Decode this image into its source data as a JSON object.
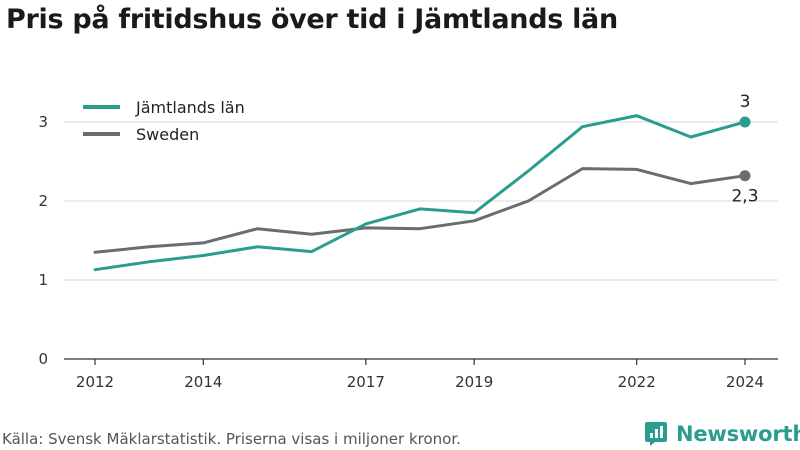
{
  "title": "Pris på fritidshus över tid i Jämtlands län",
  "source": "Källa: Svensk Mäklarstatistik. Priserna visas i miljoner kronor.",
  "brand": {
    "name": "Newsworthy"
  },
  "colors": {
    "primary": "#2a9d8f",
    "secondary": "#6b6b73",
    "grid": "#d9d9d9",
    "axis": "#333333"
  },
  "chart_data": {
    "type": "line",
    "x": [
      2012,
      2013,
      2014,
      2015,
      2016,
      2017,
      2018,
      2019,
      2020,
      2021,
      2022,
      2023,
      2024
    ],
    "x_ticks": [
      2012,
      2014,
      2017,
      2019,
      2022,
      2024
    ],
    "y_ticks": [
      0,
      1,
      2,
      3
    ],
    "ylim": [
      0,
      3.3
    ],
    "xlim": [
      2011.5,
      2024.6
    ],
    "series": [
      {
        "name": "Jämtlands län",
        "color": "#2a9d8f",
        "values": [
          1.13,
          1.23,
          1.31,
          1.42,
          1.36,
          1.71,
          1.9,
          1.85,
          2.38,
          2.94,
          3.08,
          2.81,
          3.0
        ],
        "end_label": "3"
      },
      {
        "name": "Sweden",
        "color": "#6b6b73",
        "values": [
          1.35,
          1.42,
          1.47,
          1.65,
          1.58,
          1.66,
          1.65,
          1.75,
          2.0,
          2.41,
          2.4,
          2.22,
          2.32
        ],
        "end_label": "2,3"
      }
    ],
    "legend_position": "top-left",
    "grid": true
  }
}
